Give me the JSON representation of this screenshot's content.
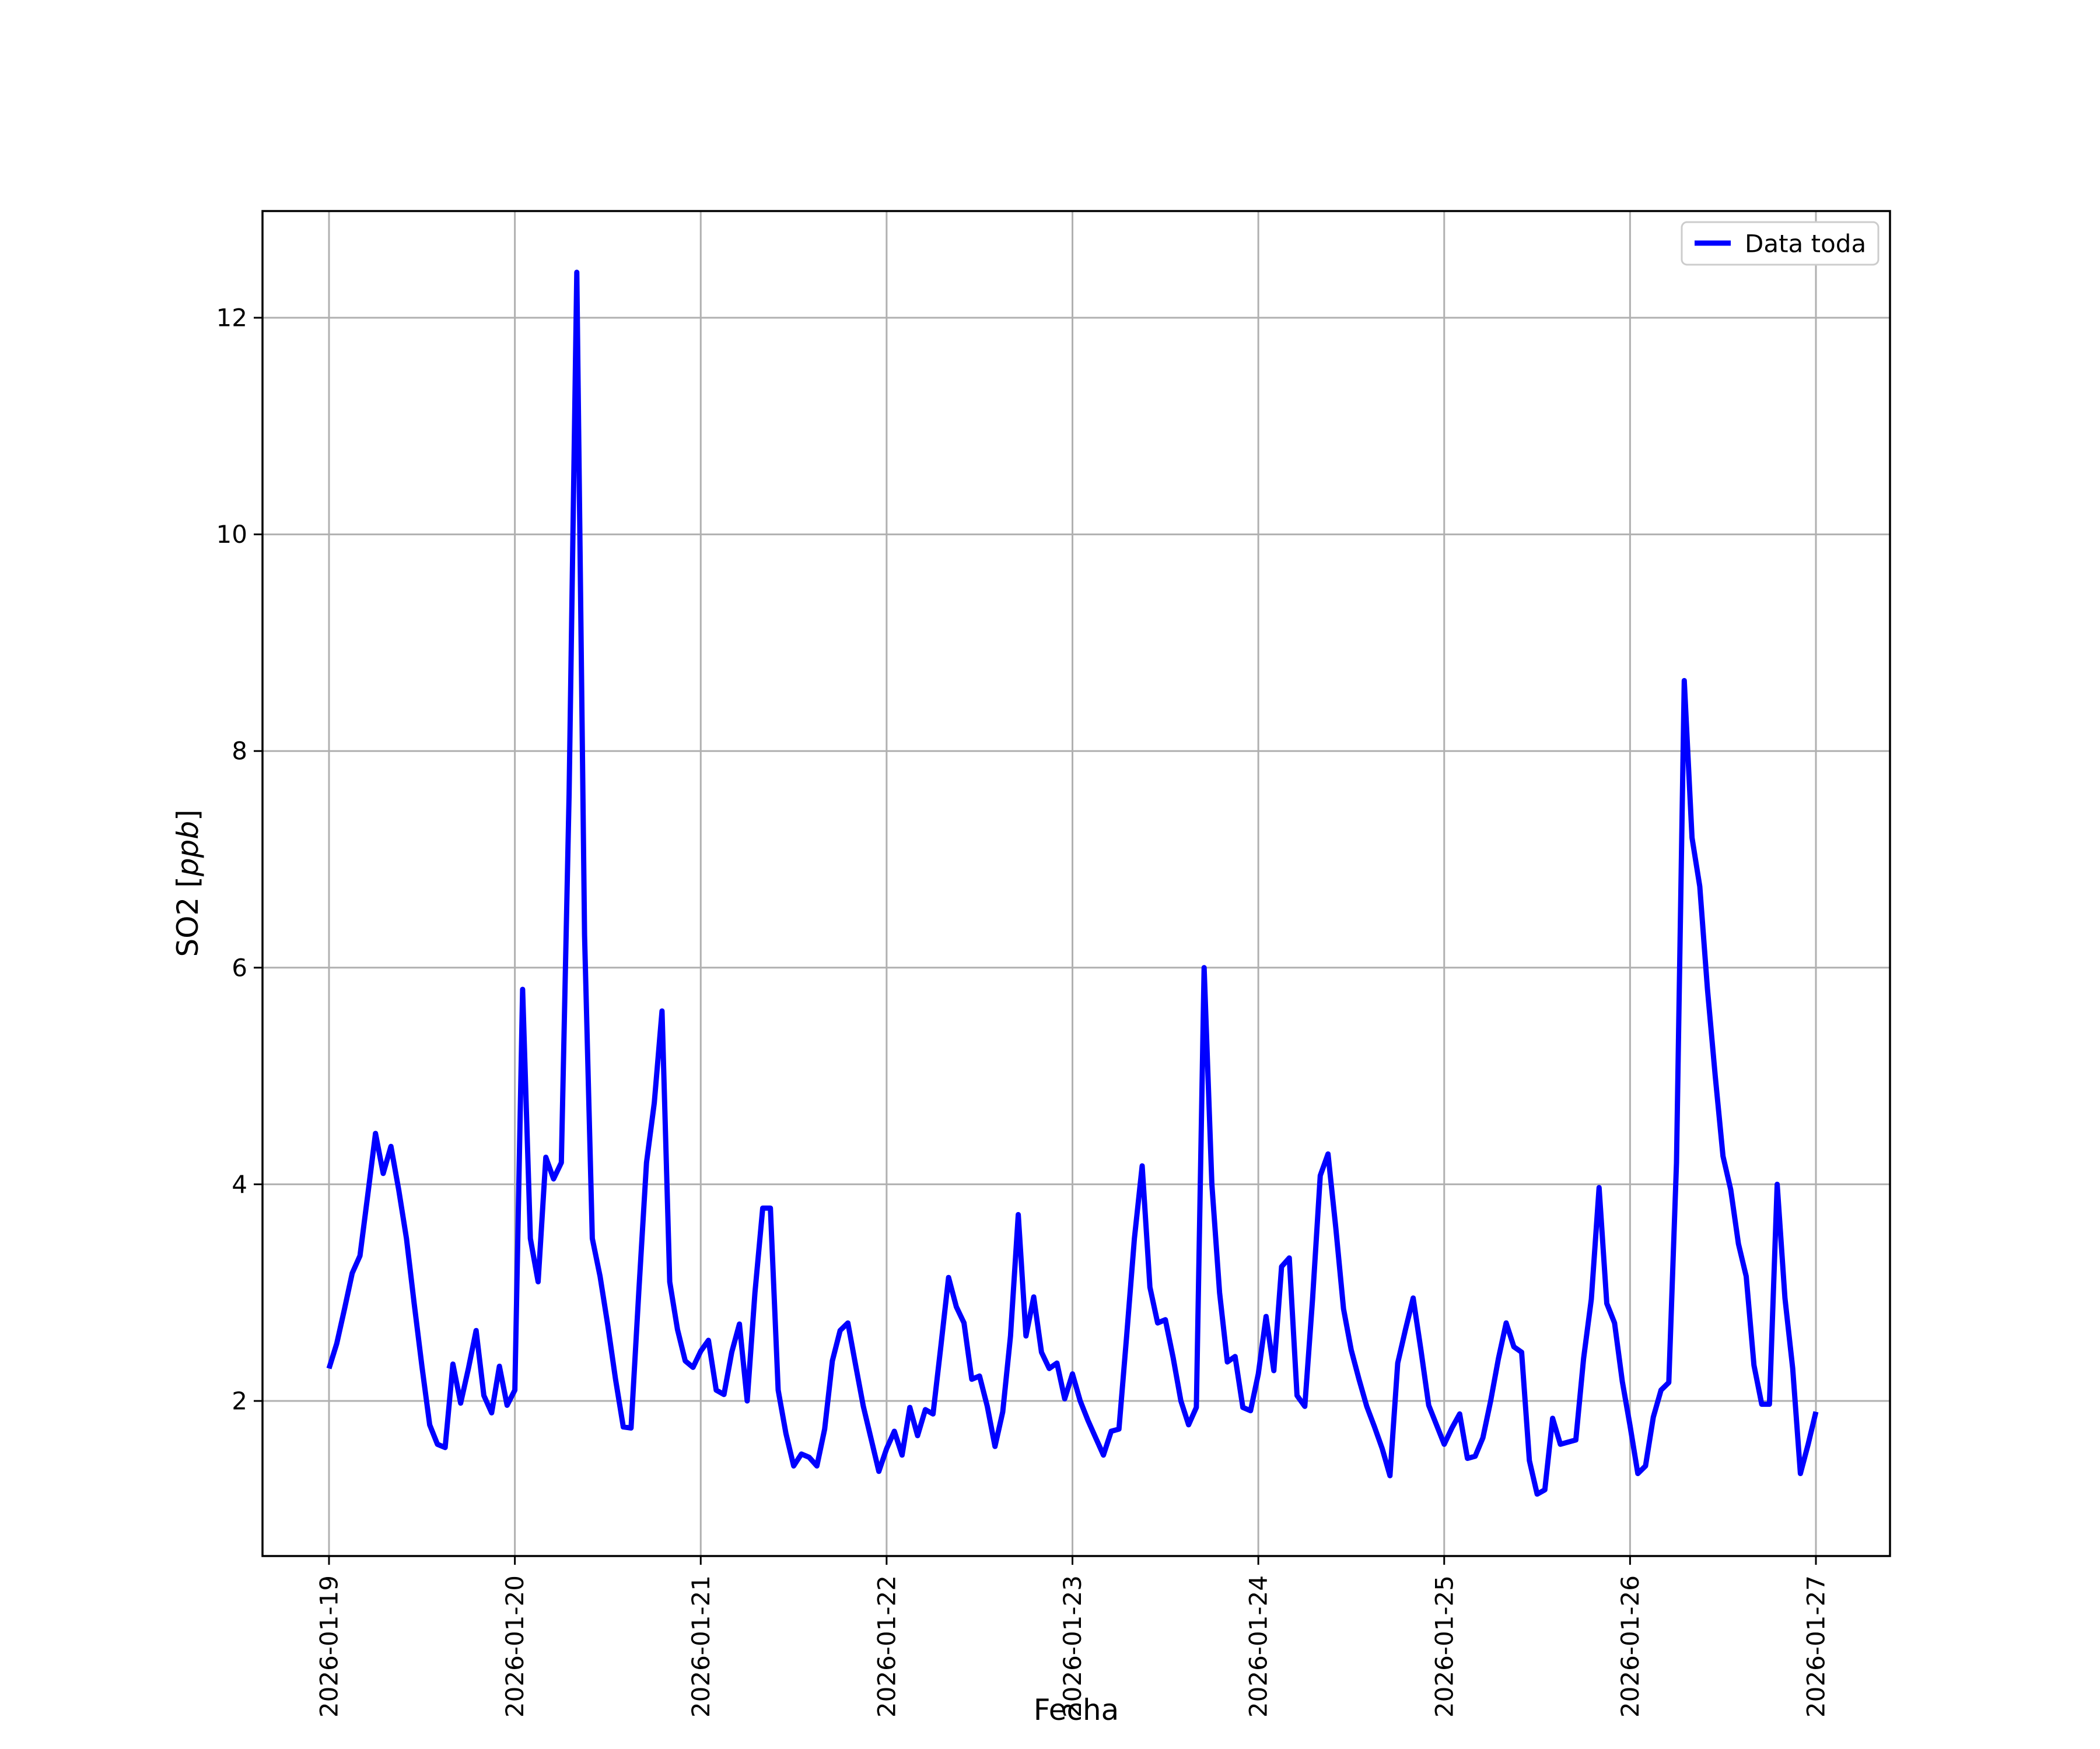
{
  "figure": {
    "background": "#ffffff"
  },
  "colors": {
    "line": "#0000ff",
    "grid": "#b0b0b0",
    "spine": "#000000",
    "legend_border": "#cccccc",
    "text": "#000000",
    "background": "#ffffff"
  },
  "axes": {
    "ylabel_parts": [
      "SO2 [",
      "ppb",
      "]"
    ]
  },
  "legend": {
    "label": "Data toda",
    "position": "upper right"
  },
  "chart_data": {
    "type": "line",
    "title": "",
    "xlabel": "Fecha",
    "ylabel": "SO2 [ppb]",
    "grid": true,
    "legend_position": "upper right",
    "x_tick_labels": [
      "2026-01-19",
      "2026-01-20",
      "2026-01-21",
      "2026-01-22",
      "2026-01-23",
      "2026-01-24",
      "2026-01-25",
      "2026-01-26",
      "2026-01-27"
    ],
    "y_ticks": [
      2,
      4,
      6,
      8,
      10,
      12
    ],
    "ylim": [
      0.57,
      12.98
    ],
    "x_start": "2026-01-19 00:00",
    "x_end": "2026-01-27 00:00",
    "x_step_hours": 1,
    "series": [
      {
        "name": "Data toda",
        "color": "#0000ff",
        "values": [
          2.3,
          2.53,
          2.85,
          3.18,
          3.34,
          3.9,
          4.47,
          4.1,
          4.35,
          3.95,
          3.5,
          2.9,
          2.32,
          1.78,
          1.6,
          1.57,
          2.34,
          1.98,
          2.3,
          2.65,
          2.05,
          1.89,
          2.32,
          1.96,
          2.1,
          5.8,
          3.5,
          3.1,
          4.25,
          4.05,
          4.2,
          7.6,
          12.42,
          6.3,
          3.5,
          3.15,
          2.7,
          2.2,
          1.76,
          1.75,
          3.0,
          4.2,
          4.75,
          5.6,
          3.1,
          2.66,
          2.37,
          2.31,
          2.46,
          2.56,
          2.1,
          2.06,
          2.45,
          2.71,
          2.0,
          3.0,
          3.78,
          3.78,
          2.1,
          1.7,
          1.4,
          1.51,
          1.48,
          1.4,
          1.74,
          2.37,
          2.65,
          2.72,
          2.33,
          1.95,
          1.65,
          1.35,
          1.56,
          1.72,
          1.5,
          1.94,
          1.68,
          1.92,
          1.88,
          2.5,
          3.14,
          2.87,
          2.72,
          2.2,
          2.23,
          1.95,
          1.58,
          1.9,
          2.6,
          3.72,
          2.6,
          2.96,
          2.45,
          2.3,
          2.35,
          2.02,
          2.25,
          2.0,
          1.82,
          1.66,
          1.5,
          1.72,
          1.74,
          2.6,
          3.5,
          4.17,
          3.05,
          2.72,
          2.75,
          2.4,
          2.0,
          1.78,
          1.94,
          6.0,
          4.0,
          3.0,
          2.36,
          2.41,
          1.94,
          1.91,
          2.25,
          2.78,
          2.28,
          3.24,
          3.32,
          2.05,
          1.95,
          2.94,
          4.08,
          4.28,
          3.6,
          2.85,
          2.47,
          2.2,
          1.95,
          1.76,
          1.56,
          1.31,
          2.35,
          2.66,
          2.95,
          2.47,
          1.96,
          1.78,
          1.6,
          1.75,
          1.88,
          1.47,
          1.49,
          1.66,
          2.0,
          2.39,
          2.72,
          2.5,
          2.45,
          1.45,
          1.14,
          1.18,
          1.84,
          1.6,
          1.62,
          1.64,
          2.39,
          2.94,
          3.97,
          2.9,
          2.72,
          2.18,
          1.77,
          1.33,
          1.4,
          1.85,
          2.1,
          2.17,
          4.2,
          8.65,
          7.2,
          6.75,
          5.8,
          5.0,
          4.26,
          3.95,
          3.45,
          3.15,
          2.33,
          1.97,
          1.97,
          4.0,
          2.95,
          2.3,
          1.33,
          1.6,
          1.9
        ]
      }
    ]
  }
}
